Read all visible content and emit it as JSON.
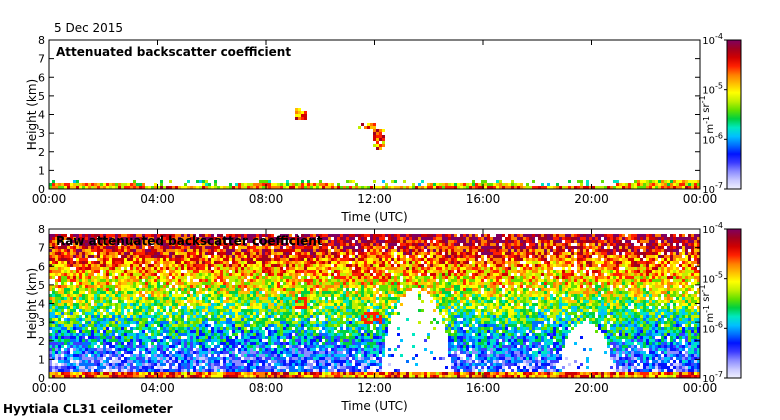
{
  "date_label": "5 Dec 2015",
  "footer_label": "Hyytiala CL31 ceilometer",
  "colormap": [
    "#f0f0ff",
    "#c8c8ff",
    "#8c8cff",
    "#3c3cff",
    "#0014ff",
    "#0070ff",
    "#00c0ff",
    "#00e8c0",
    "#00d040",
    "#60e000",
    "#c0f000",
    "#ffff00",
    "#ffc000",
    "#ff8000",
    "#ff2000",
    "#d00000",
    "#a00020",
    "#800060"
  ],
  "chart_data": [
    {
      "type": "heatmap",
      "title": "Attenuated backscatter coefficient",
      "xlabel": "Time (UTC)",
      "ylabel": "Height (km)",
      "xlim": [
        0,
        24
      ],
      "ylim": [
        0,
        8
      ],
      "xticks": [
        0,
        4,
        8,
        12,
        16,
        20,
        24
      ],
      "xtick_labels": [
        "00:00",
        "04:00",
        "08:00",
        "12:00",
        "16:00",
        "20:00",
        "00:00"
      ],
      "yticks": [
        0,
        1,
        2,
        3,
        4,
        5,
        6,
        7,
        8
      ],
      "ytick_labels": [
        "0",
        "1",
        "2",
        "3",
        "4",
        "5",
        "6",
        "7",
        "8"
      ],
      "colorbar": {
        "scale": "log",
        "range": [
          1e-07,
          0.0001
        ],
        "tick_labels": [
          "10^-7",
          "10^-6",
          "10^-5",
          "10^-4"
        ],
        "unit_label": "m^-1 sr^-1"
      },
      "features": [
        {
          "name": "boundary layer aerosol",
          "time": [
            0,
            24
          ],
          "height": [
            0,
            0.5
          ]
        },
        {
          "name": "cloud",
          "time": [
            9.1,
            9.5
          ],
          "height": [
            3.7,
            4.4
          ]
        },
        {
          "name": "cloud",
          "time": [
            11.4,
            12.1
          ],
          "height": [
            3.2,
            3.6
          ]
        },
        {
          "name": "cloud",
          "time": [
            11.9,
            12.4
          ],
          "height": [
            2.1,
            3.3
          ]
        }
      ]
    },
    {
      "type": "heatmap",
      "title": "Raw attenuated backscatter coefficient",
      "xlabel": "Time (UTC)",
      "ylabel": "Height (km)",
      "xlim": [
        0,
        24
      ],
      "ylim": [
        0,
        8
      ],
      "xticks": [
        0,
        4,
        8,
        12,
        16,
        20,
        24
      ],
      "xtick_labels": [
        "00:00",
        "04:00",
        "08:00",
        "12:00",
        "16:00",
        "20:00",
        "00:00"
      ],
      "yticks": [
        0,
        1,
        2,
        3,
        4,
        5,
        6,
        7,
        8
      ],
      "ytick_labels": [
        "0",
        "1",
        "2",
        "3",
        "4",
        "5",
        "6",
        "7",
        "8"
      ],
      "colorbar": {
        "scale": "log",
        "range": [
          1e-07,
          0.0001
        ],
        "tick_labels": [
          "10^-7",
          "10^-6",
          "10^-5",
          "10^-4"
        ],
        "unit_label": "m^-1 sr^-1"
      },
      "features": [
        {
          "name": "noise-dominated signal",
          "time": [
            0,
            24
          ],
          "height": [
            0.3,
            7.7
          ]
        },
        {
          "name": "clear region",
          "time": [
            12.3,
            14.8
          ],
          "height": [
            0.2,
            4.8
          ]
        },
        {
          "name": "clear region",
          "time": [
            18.8,
            20.8
          ],
          "height": [
            0.2,
            3.0
          ]
        }
      ]
    }
  ]
}
